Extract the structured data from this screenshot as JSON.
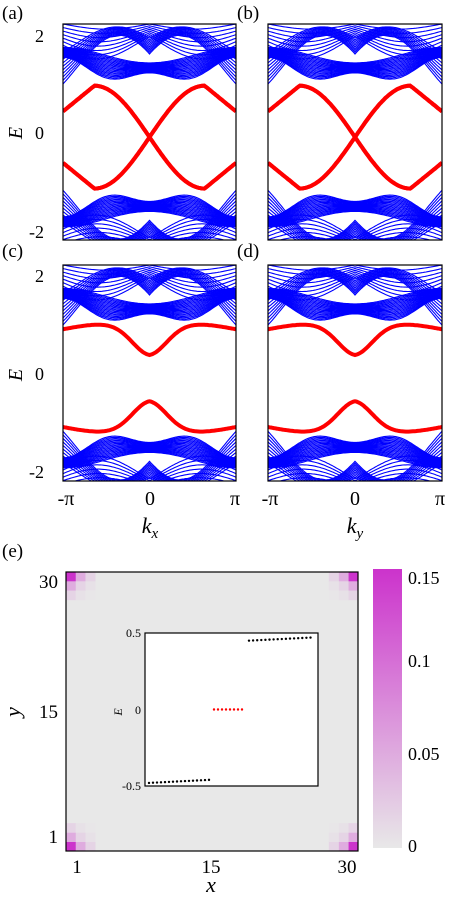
{
  "panel_labels": [
    "(a)",
    "(b)",
    "(c)",
    "(d)",
    "(e)"
  ],
  "colors": {
    "bulk": "#0000ff",
    "edge": "#ff0000",
    "corner_cmap_max": "#cc33cc",
    "cmap_min": "#e8e8e8",
    "inset_bulk": "#000000",
    "inset_corner": "#ff0000"
  },
  "chart_data": [
    {
      "type": "line",
      "panel": "(a)",
      "xlabel": "",
      "ylabel": "E",
      "xlim": [
        -3.14159,
        3.14159
      ],
      "ylim": [
        -2.0,
        2.2
      ],
      "yticks": [
        "2",
        "0",
        "-2"
      ],
      "bulk_bands": {
        "series_count": 36,
        "color": "#0000ff"
      },
      "edge_bands": {
        "gap_at_zero": 0.0,
        "edge_at_pi": 0.5,
        "max_value": 1.0
      }
    },
    {
      "type": "line",
      "panel": "(b)",
      "xlabel": "",
      "ylabel": "",
      "xlim": [
        -3.14159,
        3.14159
      ],
      "ylim": [
        -2.0,
        2.2
      ],
      "bulk_bands": {
        "series_count": 36,
        "color": "#0000ff"
      },
      "edge_bands": {
        "gap_at_zero": 0.0,
        "edge_at_pi": 0.5,
        "max_value": 1.0
      }
    },
    {
      "type": "line",
      "panel": "(c)",
      "xlabel": "k_x",
      "ylabel": "E",
      "xlim": [
        -3.14159,
        3.14159
      ],
      "ylim": [
        -2.0,
        2.2
      ],
      "xticks": [
        "-π",
        "0",
        "π"
      ],
      "yticks": [
        "2",
        "0",
        "-2"
      ],
      "bulk_bands": {
        "series_count": 36,
        "color": "#0000ff"
      },
      "edge_bands": {
        "gap_at_zero": 0.45,
        "edge_at_pi": 0.95
      }
    },
    {
      "type": "line",
      "panel": "(d)",
      "xlabel": "k_y",
      "ylabel": "",
      "xlim": [
        -3.14159,
        3.14159
      ],
      "ylim": [
        -2.0,
        2.2
      ],
      "xticks": [
        "-π",
        "0",
        "π"
      ],
      "bulk_bands": {
        "series_count": 36,
        "color": "#0000ff"
      },
      "edge_bands": {
        "gap_at_zero": 0.45,
        "edge_at_pi": 0.95
      }
    },
    {
      "type": "heatmap",
      "panel": "(e)",
      "xlabel": "x",
      "ylabel": "y",
      "xlim": [
        1,
        30
      ],
      "ylim": [
        1,
        30
      ],
      "xticks": [
        "1",
        "15",
        "30"
      ],
      "yticks": [
        "1",
        "15",
        "30"
      ],
      "colorbar": {
        "min": 0,
        "max": 0.15,
        "ticks": [
          "0",
          "0.05",
          "0.1",
          "0.15"
        ]
      },
      "corner_peak": 0.15,
      "inset": {
        "type": "scatter",
        "ylabel": "E",
        "ylim": [
          -0.5,
          0.5
        ],
        "yticks": [
          "0.5",
          "0",
          "-0.5"
        ],
        "lower_band": {
          "count": 16,
          "start": -0.48,
          "end": -0.46
        },
        "upper_band": {
          "count": 16,
          "start": 0.45,
          "end": 0.47
        },
        "corner_states": {
          "count": 8,
          "value": 0.0
        }
      }
    }
  ]
}
